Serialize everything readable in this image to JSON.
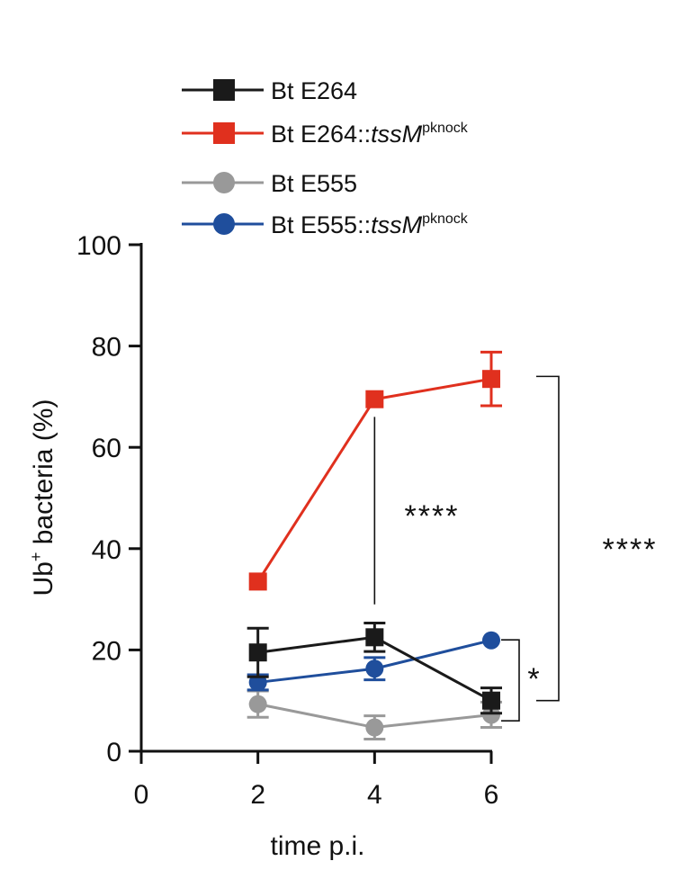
{
  "chart_data": {
    "type": "line",
    "xlabel": "time p.i.",
    "ylabel_main": "Ub",
    "ylabel_sup": "+",
    "ylabel_rest": " bacteria (%)",
    "xlim": [
      0,
      6
    ],
    "ylim": [
      0,
      100
    ],
    "x_ticks": [
      "0",
      "2",
      "4",
      "6"
    ],
    "y_ticks": [
      "0",
      "20",
      "40",
      "60",
      "80",
      "100"
    ],
    "grid": false,
    "legend_position": "top",
    "series": [
      {
        "name_prefix": "Bt E264",
        "name_italic": "",
        "name_sup": "",
        "color": "#1a1a1a",
        "marker": "square",
        "x": [
          2,
          4,
          6
        ],
        "y": [
          19.5,
          22.5,
          10
        ],
        "err": [
          4.8,
          2.8,
          2.5
        ]
      },
      {
        "name_prefix": "Bt E264::",
        "name_italic": "tssM",
        "name_sup": "pknock",
        "color": "#e0301e",
        "marker": "square",
        "x": [
          2,
          4,
          6
        ],
        "y": [
          33.5,
          69.5,
          73.5
        ],
        "err": [
          0,
          0,
          5.3
        ]
      },
      {
        "name_prefix": "Bt E555",
        "name_italic": "",
        "name_sup": "",
        "color": "#999999",
        "marker": "circle",
        "x": [
          2,
          4,
          6
        ],
        "y": [
          9.3,
          4.7,
          7.2
        ],
        "err": [
          2.6,
          2.3,
          2.5
        ]
      },
      {
        "name_prefix": "Bt E555::",
        "name_italic": "tssM",
        "name_sup": "pknock",
        "color": "#1f4e9c",
        "marker": "circle",
        "x": [
          2,
          4,
          6
        ],
        "y": [
          13.6,
          16.3,
          21.9
        ],
        "err": [
          1.5,
          2.2,
          0
        ]
      }
    ],
    "annotations": [
      {
        "type": "vline",
        "text": "****",
        "x": 4,
        "y_from": 29,
        "y_to": 66
      },
      {
        "type": "bracket",
        "text": "****",
        "y_from": 10,
        "y_to": 74
      },
      {
        "type": "bracket",
        "text": "*",
        "y_from": 6,
        "y_to": 22
      }
    ]
  }
}
